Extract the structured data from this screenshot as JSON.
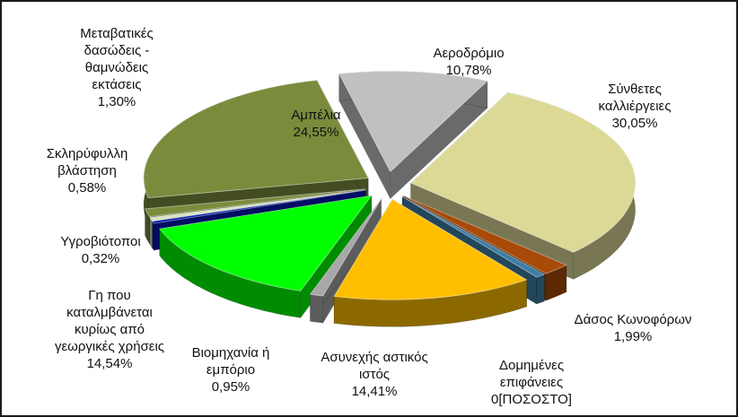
{
  "chart_data": {
    "type": "pie",
    "style": "3d-exploded",
    "title": "",
    "slices": [
      {
        "name": "Αεροδρόμιο",
        "value_label": "10,78%",
        "value": 10.78,
        "color": "#c0c0c0"
      },
      {
        "name": "Σύνθετες καλλιέργειες",
        "value_label": "30,05%",
        "value": 30.05,
        "color": "#dcd996"
      },
      {
        "name": "Δάσος Κωνοφόρων",
        "value_label": "1,99%",
        "value": 1.99,
        "color": "#a84a08"
      },
      {
        "name": "Δομημένες επιφάνειες",
        "value_label": "0[ΠΟΣΟΣΤΟ]",
        "value": 0.7,
        "color": "#3d7fa6"
      },
      {
        "name": "Ασυνεχής αστικός ιστός",
        "value_label": "14,41%",
        "value": 14.41,
        "color": "#ffbf00"
      },
      {
        "name": "Βιομηχανία ή εμπόριο",
        "value_label": "0,95%",
        "value": 0.95,
        "color": "#a8a8a8"
      },
      {
        "name": "Γη που καταλμβάνεται κυρίως από γεωργικές χρήσεις",
        "value_label": "14,54%",
        "value": 14.54,
        "color": "#00ff00"
      },
      {
        "name": "Υγροβιότοποι",
        "value_label": "0,32%",
        "value": 0.32,
        "color": "#0018b0"
      },
      {
        "name": "Σκληρύφυλλη βλάστηση",
        "value_label": "0,58%",
        "value": 0.58,
        "color": "#d8e4c0"
      },
      {
        "name": "Μεταβατικές δασώδεις - θαμνώδεις εκτάσεις",
        "value_label": "1,30%",
        "value": 1.3,
        "color": "#7a8c3c"
      },
      {
        "name": "Αμπέλια",
        "value_label": "24,55%",
        "value": 24.55,
        "color": "#7a8c3c"
      }
    ],
    "labels": {
      "aerodromio": {
        "lines": [
          "Αεροδρόμιο",
          "10,78%"
        ]
      },
      "syntheteskall": {
        "lines": [
          "Σύνθετες",
          "καλλιέργειες",
          "30,05%"
        ]
      },
      "dasoskon": {
        "lines": [
          "Δάσος Κωνοφόρων",
          "1,99%"
        ]
      },
      "domimenes": {
        "lines": [
          "Δομημένες",
          "επιφάνειες",
          "0[ΠΟΣΟΣΤΟ]"
        ]
      },
      "asynexis": {
        "lines": [
          "Ασυνεχής αστικός",
          "ιστός",
          "14,41%"
        ]
      },
      "viomixania": {
        "lines": [
          "Βιομηχανία ή",
          "εμπόριο",
          "0,95%"
        ]
      },
      "gi": {
        "lines": [
          "Γη που",
          "καταλμβάνεται",
          "κυρίως από",
          "γεωργικές χρήσεις",
          "14,54%"
        ]
      },
      "ygrovio": {
        "lines": [
          "Υγροβιότοποι",
          "0,32%"
        ]
      },
      "sklir": {
        "lines": [
          "Σκληρύφυλλη",
          "βλάστηση",
          "0,58%"
        ]
      },
      "metavat": {
        "lines": [
          "Μεταβατικές",
          "δασώδεις -",
          "θαμνώδεις",
          "εκτάσεις",
          "1,30%"
        ]
      },
      "ampelia": {
        "lines": [
          "Αμπέλια",
          "24,55%"
        ]
      }
    }
  }
}
